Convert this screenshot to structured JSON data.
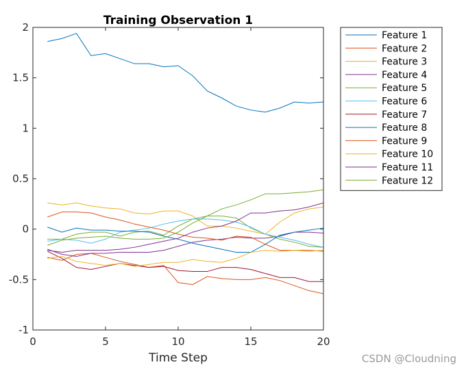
{
  "chart_data": {
    "type": "line",
    "title": "Training Observation 1",
    "xlabel": "Time Step",
    "ylabel": "",
    "xlim": [
      0,
      20
    ],
    "ylim": [
      -1,
      2
    ],
    "xticks": [
      0,
      5,
      10,
      15,
      20
    ],
    "yticks": [
      -1,
      -0.5,
      0,
      0.5,
      1,
      1.5,
      2
    ],
    "xtick_labels": [
      "0",
      "5",
      "10",
      "15",
      "20"
    ],
    "ytick_labels": [
      "-1",
      "-0.5",
      "0",
      "0.5",
      "1",
      "1.5",
      "2"
    ],
    "grid": false,
    "legend_position": "outside right, top",
    "x": [
      1,
      2,
      3,
      4,
      5,
      6,
      7,
      8,
      9,
      10,
      11,
      12,
      13,
      14,
      15,
      16,
      17,
      18,
      19,
      20
    ],
    "series": [
      {
        "name": "Feature 1",
        "color": "#0072bd",
        "values": [
          1.86,
          1.89,
          1.94,
          1.72,
          1.74,
          1.69,
          1.64,
          1.64,
          1.61,
          1.62,
          1.52,
          1.37,
          1.3,
          1.22,
          1.18,
          1.16,
          1.2,
          1.26,
          1.25,
          1.26
        ]
      },
      {
        "name": "Feature 2",
        "color": "#d95319",
        "values": [
          -0.28,
          -0.31,
          -0.25,
          -0.24,
          -0.28,
          -0.32,
          -0.35,
          -0.38,
          -0.36,
          -0.53,
          -0.55,
          -0.47,
          -0.49,
          -0.5,
          -0.5,
          -0.48,
          -0.51,
          -0.56,
          -0.61,
          -0.64
        ]
      },
      {
        "name": "Feature 3",
        "color": "#edb120",
        "values": [
          0.26,
          0.24,
          0.26,
          0.23,
          0.21,
          0.2,
          0.16,
          0.15,
          0.18,
          0.18,
          0.13,
          0.03,
          0.03,
          0.01,
          -0.02,
          -0.05,
          0.07,
          0.16,
          0.2,
          0.22
        ]
      },
      {
        "name": "Feature 4",
        "color": "#7e2f8e",
        "values": [
          -0.2,
          -0.25,
          -0.27,
          -0.24,
          -0.24,
          -0.23,
          -0.23,
          -0.23,
          -0.21,
          -0.17,
          -0.13,
          -0.11,
          -0.1,
          -0.08,
          -0.09,
          -0.09,
          -0.07,
          -0.03,
          -0.03,
          -0.04
        ]
      },
      {
        "name": "Feature 5",
        "color": "#77ac30",
        "values": [
          -0.1,
          -0.1,
          -0.05,
          -0.03,
          -0.03,
          -0.07,
          -0.03,
          -0.02,
          -0.06,
          0.03,
          0.1,
          0.13,
          0.13,
          0.11,
          0.01,
          -0.05,
          -0.1,
          -0.13,
          -0.17,
          -0.18
        ]
      },
      {
        "name": "Feature 6",
        "color": "#4dbeee",
        "values": [
          -0.12,
          -0.1,
          -0.11,
          -0.14,
          -0.1,
          -0.03,
          -0.01,
          0.01,
          0.05,
          0.08,
          0.1,
          0.1,
          0.09,
          0.07,
          0.02,
          -0.05,
          -0.08,
          -0.11,
          -0.15,
          -0.18
        ]
      },
      {
        "name": "Feature 7",
        "color": "#a2142f",
        "values": [
          -0.22,
          -0.29,
          -0.38,
          -0.4,
          -0.37,
          -0.34,
          -0.36,
          -0.38,
          -0.37,
          -0.41,
          -0.42,
          -0.42,
          -0.38,
          -0.38,
          -0.4,
          -0.44,
          -0.48,
          -0.48,
          -0.52,
          -0.52
        ]
      },
      {
        "name": "Feature 8",
        "color": "#0072bd",
        "values": [
          0.02,
          -0.03,
          0.01,
          -0.01,
          -0.01,
          -0.02,
          -0.02,
          -0.03,
          -0.07,
          -0.1,
          -0.14,
          -0.17,
          -0.2,
          -0.23,
          -0.23,
          -0.15,
          -0.06,
          -0.03,
          -0.01,
          0.01
        ]
      },
      {
        "name": "Feature 9",
        "color": "#d95319",
        "values": [
          0.12,
          0.17,
          0.17,
          0.16,
          0.12,
          0.09,
          0.05,
          0.02,
          -0.01,
          -0.05,
          -0.08,
          -0.09,
          -0.11,
          -0.07,
          -0.08,
          -0.15,
          -0.21,
          -0.21,
          -0.21,
          -0.22
        ]
      },
      {
        "name": "Feature 10",
        "color": "#edb120",
        "values": [
          -0.29,
          -0.27,
          -0.32,
          -0.34,
          -0.36,
          -0.34,
          -0.37,
          -0.35,
          -0.33,
          -0.33,
          -0.3,
          -0.32,
          -0.33,
          -0.29,
          -0.23,
          -0.21,
          -0.22,
          -0.21,
          -0.22,
          -0.21
        ]
      },
      {
        "name": "Feature 11",
        "color": "#7e2f8e",
        "values": [
          -0.21,
          -0.23,
          -0.21,
          -0.21,
          -0.21,
          -0.2,
          -0.18,
          -0.15,
          -0.12,
          -0.09,
          -0.03,
          0.01,
          0.03,
          0.08,
          0.16,
          0.16,
          0.18,
          0.19,
          0.22,
          0.26
        ]
      },
      {
        "name": "Feature 12",
        "color": "#77ac30",
        "values": [
          -0.16,
          -0.11,
          -0.09,
          -0.08,
          -0.07,
          -0.09,
          -0.1,
          -0.1,
          -0.09,
          -0.03,
          0.06,
          0.13,
          0.2,
          0.24,
          0.29,
          0.35,
          0.35,
          0.36,
          0.37,
          0.39
        ]
      }
    ]
  },
  "watermark": "CSDN @Cloudning"
}
